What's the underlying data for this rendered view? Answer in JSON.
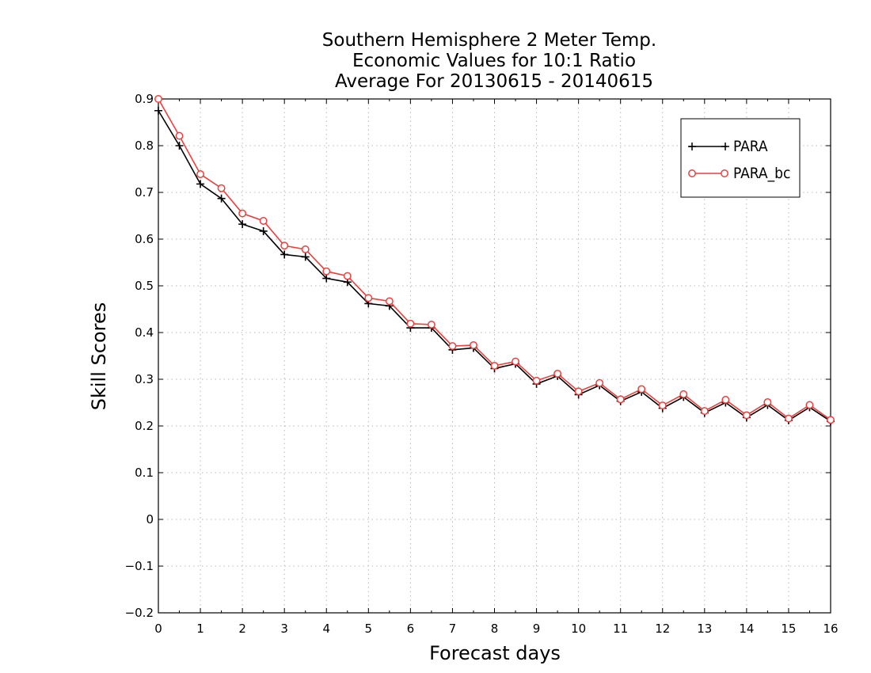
{
  "chart_data": {
    "type": "line",
    "title": [
      "Southern Hemisphere 2 Meter Temp.",
      "Economic Values for 10:1 Ratio",
      "Average For 20130615 - 20140615"
    ],
    "xlabel": "Forecast days",
    "ylabel": "Skill Scores",
    "xlim": [
      0,
      16
    ],
    "ylim": [
      -0.2,
      0.9
    ],
    "xticks": [
      0,
      1,
      2,
      3,
      4,
      5,
      6,
      7,
      8,
      9,
      10,
      11,
      12,
      13,
      14,
      15,
      16
    ],
    "yticks": [
      -0.2,
      -0.1,
      0,
      0.1,
      0.2,
      0.3,
      0.4,
      0.5,
      0.6,
      0.7,
      0.8,
      0.9
    ],
    "xtick_labels": [
      "0",
      "1",
      "2",
      "3",
      "4",
      "5",
      "6",
      "7",
      "8",
      "9",
      "10",
      "11",
      "12",
      "13",
      "14",
      "15",
      "16"
    ],
    "ytick_labels": [
      "−0.2",
      "−0.1",
      "0",
      "0.1",
      "0.2",
      "0.3",
      "0.4",
      "0.5",
      "0.6",
      "0.7",
      "0.8",
      "0.9"
    ],
    "grid": true,
    "legend_position": "top-right",
    "x": [
      0,
      0.5,
      1,
      1.5,
      2,
      2.5,
      3,
      3.5,
      4,
      4.5,
      5,
      5.5,
      6,
      6.5,
      7,
      7.5,
      8,
      8.5,
      9,
      9.5,
      10,
      10.5,
      11,
      11.5,
      12,
      12.5,
      13,
      13.5,
      14,
      14.5,
      15,
      15.5,
      16
    ],
    "series": [
      {
        "name": "PARA",
        "color": "#000000",
        "marker": "plus",
        "values": [
          0.875,
          0.8,
          0.718,
          0.687,
          0.632,
          0.617,
          0.567,
          0.562,
          0.516,
          0.508,
          0.462,
          0.457,
          0.41,
          0.41,
          0.363,
          0.367,
          0.323,
          0.333,
          0.29,
          0.307,
          0.267,
          0.287,
          0.253,
          0.273,
          0.238,
          0.262,
          0.228,
          0.25,
          0.218,
          0.245,
          0.212,
          0.24,
          0.21
        ]
      },
      {
        "name": "PARA_bc",
        "color": "#e8413f",
        "marker": "circle",
        "values": [
          0.9,
          0.821,
          0.739,
          0.709,
          0.655,
          0.639,
          0.586,
          0.578,
          0.531,
          0.521,
          0.474,
          0.467,
          0.419,
          0.417,
          0.371,
          0.373,
          0.329,
          0.338,
          0.297,
          0.312,
          0.274,
          0.292,
          0.257,
          0.279,
          0.244,
          0.268,
          0.232,
          0.256,
          0.223,
          0.251,
          0.216,
          0.245,
          0.213
        ]
      }
    ]
  }
}
